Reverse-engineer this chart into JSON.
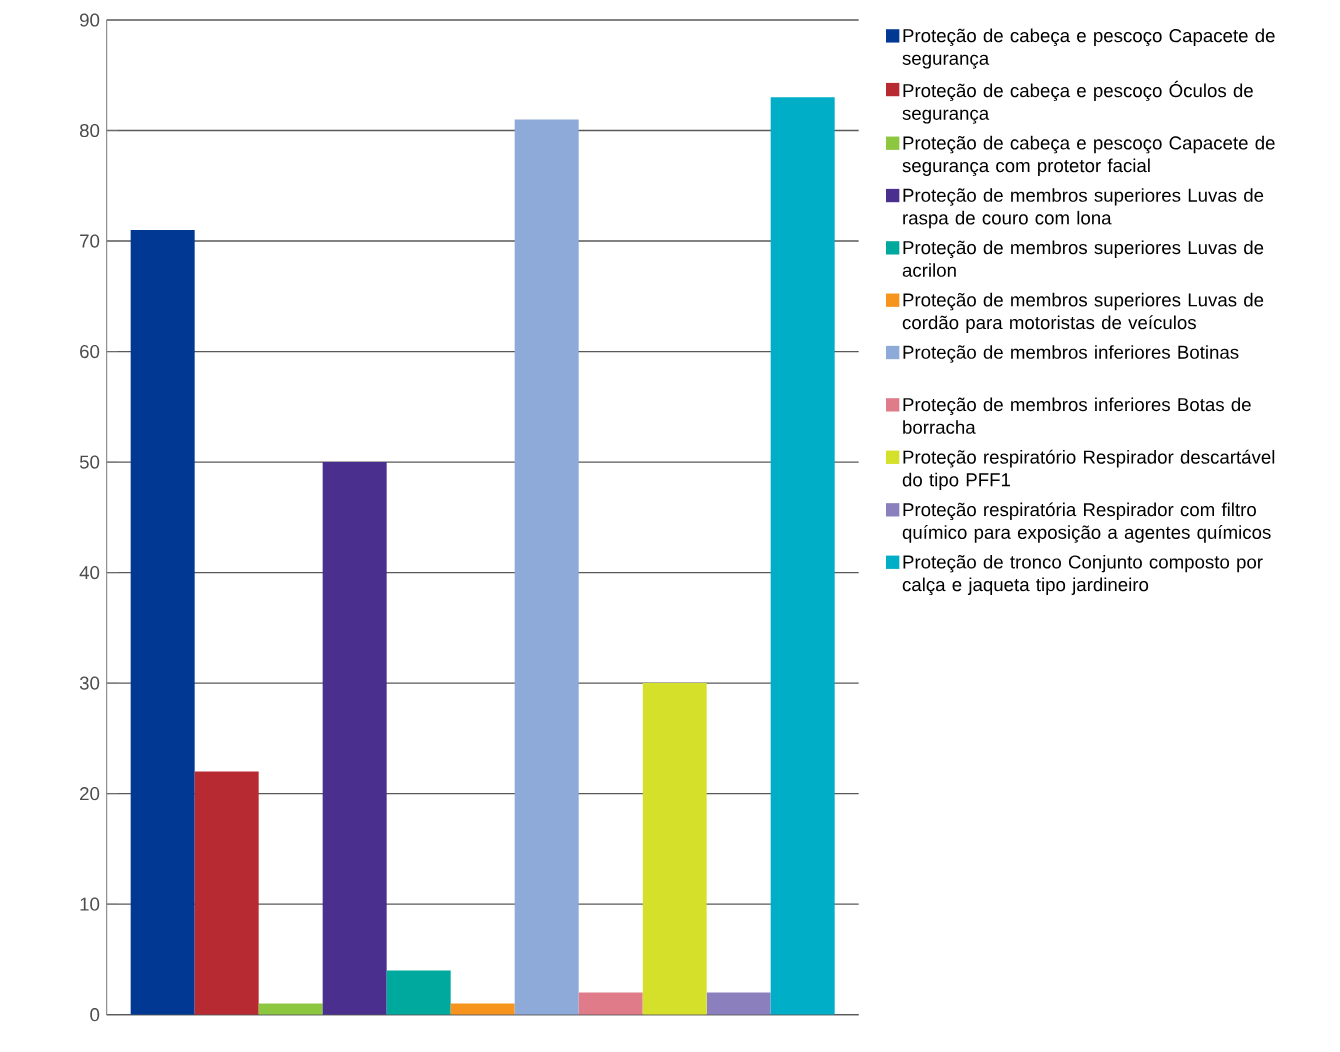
{
  "chart_data": {
    "type": "bar",
    "categories": [
      null
    ],
    "ylim": [
      0,
      90
    ],
    "yticks": [
      0,
      10,
      20,
      30,
      40,
      50,
      60,
      70,
      80,
      90
    ],
    "grid": "y",
    "legend": "right",
    "series": [
      {
        "name": "Proteção de cabeça e pescoço Capacete de segurança",
        "color": "#003893",
        "values": [
          71
        ]
      },
      {
        "name": "Proteção de cabeça e pescoço Óculos de segurança",
        "color": "#b72a31",
        "values": [
          22
        ]
      },
      {
        "name": "Proteção de cabeça e pescoço Capacete de segurança com protetor facial",
        "color": "#8dc63f",
        "values": [
          1
        ]
      },
      {
        "name": "Proteção de membros superiores Luvas de raspa de couro com lona",
        "color": "#4a2f8f",
        "values": [
          50
        ]
      },
      {
        "name": "Proteção de membros superiores Luvas de acrilon",
        "color": "#00a99d",
        "values": [
          4
        ]
      },
      {
        "name": "Proteção de membros superiores Luvas de cordão para motoristas de veículos",
        "color": "#f7941d",
        "values": [
          1
        ]
      },
      {
        "name": "Proteção de membros inferiores Botinas",
        "color": "#8eaad8",
        "values": [
          81
        ]
      },
      {
        "name": "Proteção de membros inferiores Botas de borracha",
        "color": "#e07c8a",
        "values": [
          2
        ]
      },
      {
        "name": "Proteção respiratório Respirador descartável do tipo PFF1",
        "color": "#d4e02a",
        "values": [
          30
        ]
      },
      {
        "name": "Proteção respiratória Respirador com filtro químico para exposição a agentes químicos",
        "color": "#8b7fbd",
        "values": [
          2
        ]
      },
      {
        "name": "Proteção de tronco Conjunto composto por calça e jaqueta tipo jardineiro",
        "color": "#00aec7",
        "values": [
          83
        ]
      }
    ]
  }
}
